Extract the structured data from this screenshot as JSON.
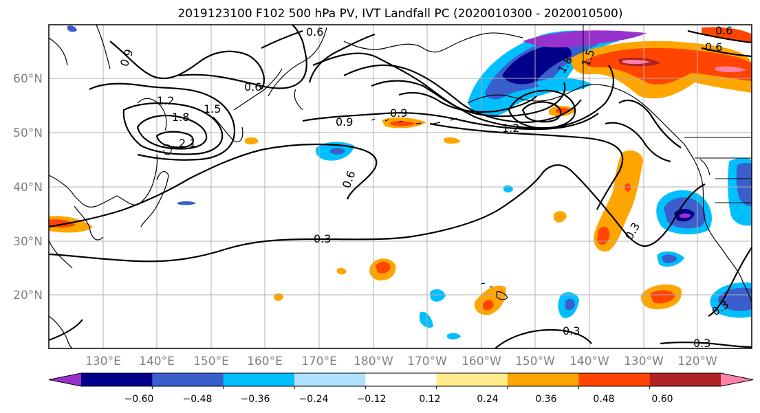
{
  "title": "2019123100 F102 500 hPa PV, IVT Landfall PC (2020010300 - 2020010500)",
  "lat_labels": [
    "60°N",
    "50°N",
    "40°N",
    "30°N",
    "20°N"
  ],
  "lon_labels": [
    "130°E",
    "140°E",
    "150°E",
    "160°E",
    "170°E",
    "180°W",
    "170°W",
    "160°W",
    "150°W",
    "140°W",
    "130°W",
    "120°W"
  ],
  "contour_labels": [
    "0.9",
    "1.2",
    "1.8",
    "1.5",
    "2.1",
    "0.6",
    "0.6",
    "0.9",
    "0.9",
    "0.6",
    "0.3",
    "0.3",
    "0.3",
    "0.3",
    "0.3",
    "1.2",
    "1.5",
    "0.6",
    "0.6",
    "1.8"
  ],
  "colorbar": {
    "ticks": [
      "−0.60",
      "−0.48",
      "−0.36",
      "−0.24",
      "−0.12",
      "0.12",
      "0.24",
      "0.36",
      "0.48",
      "0.60"
    ],
    "colors": [
      "#9932cc",
      "#00008b",
      "#3a5fcd",
      "#00bfff",
      "#b0e2ff",
      "#ffffff",
      "#ffec8b",
      "#ffa500",
      "#ff4500",
      "#b22222",
      "#ff82ab"
    ]
  }
}
